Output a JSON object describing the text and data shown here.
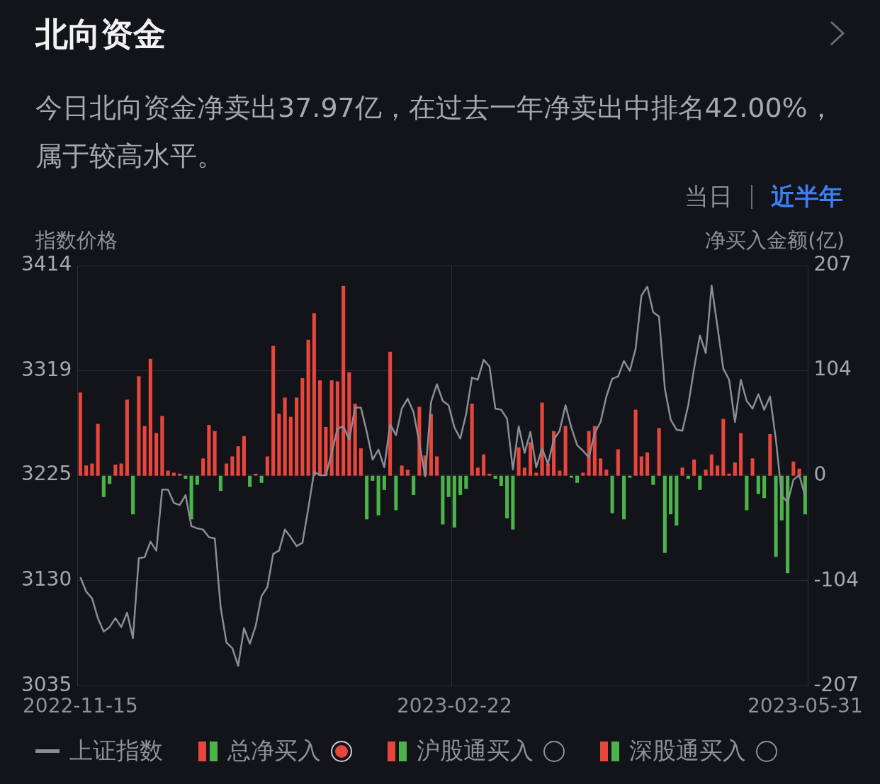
{
  "chart_data": {
    "type": "bar",
    "title": "北向资金",
    "subtitle": "今日北向资金净卖出37.97亿，在过去一年净卖出中排名42.00%，属于较高水平。",
    "ylabel": "指数价格",
    "y2label": "净买入金额(亿)",
    "annotations": [
      "当日",
      "近半年",
      "沪股通买入",
      "深股通买入"
    ],
    "categories": [
      "2022-11-15",
      null,
      null,
      null,
      null,
      null,
      null,
      null,
      null,
      null,
      null,
      null,
      null,
      null,
      null,
      null,
      null,
      null,
      null,
      null,
      null,
      null,
      null,
      null,
      null,
      null,
      null,
      null,
      null,
      null,
      null,
      null,
      null,
      null,
      null,
      null,
      null,
      null,
      null,
      null,
      null,
      null,
      null,
      null,
      null,
      null,
      null,
      null,
      null,
      null,
      null,
      null,
      null,
      null,
      null,
      null,
      null,
      null,
      null,
      null,
      null,
      null,
      null,
      null,
      "2023-02-22",
      null,
      null,
      null,
      null,
      null,
      null,
      null,
      null,
      null,
      null,
      null,
      null,
      null,
      null,
      null,
      null,
      null,
      null,
      null,
      null,
      null,
      null,
      null,
      null,
      null,
      null,
      null,
      null,
      null,
      null,
      null,
      null,
      null,
      null,
      null,
      null,
      null,
      null,
      null,
      null,
      null,
      null,
      null,
      null,
      null,
      null,
      null,
      null,
      null,
      null,
      null,
      null,
      null,
      null,
      null,
      null,
      null,
      null,
      null,
      "2023-05-31"
    ],
    "series": [
      {
        "name": "上证指数",
        "type": "line",
        "axis": "y",
        "color": "#8a8d93",
        "values": [
          3133,
          3120,
          3114,
          3096,
          3084,
          3088,
          3096,
          3088,
          3101,
          3078,
          3150,
          3151,
          3165,
          3157,
          3212,
          3212,
          3200,
          3198,
          3207,
          3179,
          3177,
          3176,
          3169,
          3168,
          3106,
          3074,
          3069,
          3053,
          3087,
          3073,
          3089,
          3116,
          3124,
          3154,
          3157,
          3176,
          3169,
          3161,
          3164,
          3195,
          3228,
          3225,
          3225,
          3245,
          3267,
          3269,
          3257,
          3286,
          3286,
          3264,
          3239,
          3248,
          3232,
          3271,
          3261,
          3285,
          3294,
          3282,
          3254,
          3224,
          3291,
          3307,
          3292,
          3288,
          3268,
          3258,
          3280,
          3313,
          3311,
          3329,
          3323,
          3285,
          3284,
          3276,
          3230,
          3269,
          3245,
          3264,
          3232,
          3249,
          3235,
          3257,
          3265,
          3288,
          3268,
          3252,
          3247,
          3241,
          3263,
          3273,
          3296,
          3312,
          3314,
          3328,
          3319,
          3339,
          3387,
          3395,
          3372,
          3368,
          3303,
          3275,
          3266,
          3265,
          3288,
          3321,
          3351,
          3335,
          3396,
          3359,
          3321,
          3311,
          3273,
          3311,
          3292,
          3285,
          3298,
          3284,
          3296,
          3257,
          3207,
          3200,
          3221,
          3225,
          3206
        ]
      },
      {
        "name": "总净买入",
        "type": "bar",
        "axis": "y2",
        "color": "#e8453c",
        "values": [
          82,
          10,
          12,
          51,
          -21,
          -8,
          11,
          12,
          75,
          -38,
          98,
          49,
          115,
          42,
          59,
          5,
          3,
          2,
          -3,
          -43,
          -9,
          17,
          50,
          44,
          -15,
          12,
          19,
          29,
          39,
          -11,
          2,
          -7,
          19,
          128,
          61,
          77,
          58,
          77,
          96,
          134,
          160,
          94,
          48,
          94,
          93,
          187,
          102,
          71,
          27,
          -43,
          -5,
          -39,
          -14,
          122,
          -34,
          10,
          6,
          -19,
          68,
          20,
          61,
          19,
          -48,
          -21,
          -51,
          -19,
          -13,
          71,
          8,
          21,
          2,
          -3,
          -10,
          -42,
          -53,
          28,
          8,
          33,
          3,
          72,
          12,
          44,
          5,
          49,
          -2,
          -7,
          3,
          44,
          49,
          17,
          6,
          -37,
          26,
          -43,
          -2,
          65,
          19,
          23,
          -9,
          47,
          -76,
          -38,
          -49,
          8,
          -3,
          16,
          -14,
          6,
          21,
          10,
          56,
          2,
          13,
          42,
          -34,
          17,
          -18,
          -22,
          41,
          -80,
          -44,
          -96,
          14,
          7,
          -38
        ],
        "colors": [
          "#e8453c",
          "#e8453c",
          "#e8453c",
          "#e8453c",
          "#4cb24a",
          "#4cb24a",
          "#e8453c",
          "#e8453c",
          "#e8453c",
          "#4cb24a",
          "#e8453c",
          "#e8453c",
          "#e8453c",
          "#e8453c",
          "#e8453c",
          "#e8453c",
          "#e8453c",
          "#e8453c",
          "#4cb24a",
          "#4cb24a",
          "#4cb24a",
          "#e8453c",
          "#e8453c",
          "#e8453c",
          "#4cb24a",
          "#e8453c",
          "#e8453c",
          "#e8453c",
          "#e8453c",
          "#4cb24a",
          "#e8453c",
          "#4cb24a",
          "#e8453c",
          "#e8453c",
          "#e8453c",
          "#e8453c",
          "#e8453c",
          "#e8453c",
          "#e8453c",
          "#e8453c",
          "#e8453c",
          "#e8453c",
          "#e8453c",
          "#e8453c",
          "#e8453c",
          "#e8453c",
          "#e8453c",
          "#e8453c",
          "#e8453c",
          "#4cb24a",
          "#4cb24a",
          "#4cb24a",
          "#4cb24a",
          "#e8453c",
          "#4cb24a",
          "#e8453c",
          "#e8453c",
          "#4cb24a",
          "#e8453c",
          "#e8453c",
          "#e8453c",
          "#e8453c",
          "#4cb24a",
          "#4cb24a",
          "#4cb24a",
          "#4cb24a",
          "#4cb24a",
          "#e8453c",
          "#e8453c",
          "#e8453c",
          "#e8453c",
          "#4cb24a",
          "#4cb24a",
          "#4cb24a",
          "#4cb24a",
          "#e8453c",
          "#e8453c",
          "#e8453c",
          "#e8453c",
          "#e8453c",
          "#e8453c",
          "#e8453c",
          "#e8453c",
          "#e8453c",
          "#4cb24a",
          "#4cb24a",
          "#e8453c",
          "#e8453c",
          "#e8453c",
          "#e8453c",
          "#e8453c",
          "#4cb24a",
          "#e8453c",
          "#4cb24a",
          "#4cb24a",
          "#e8453c",
          "#e8453c",
          "#e8453c",
          "#4cb24a",
          "#e8453c",
          "#4cb24a",
          "#4cb24a",
          "#4cb24a",
          "#e8453c",
          "#4cb24a",
          "#e8453c",
          "#4cb24a",
          "#e8453c",
          "#e8453c",
          "#e8453c",
          "#e8453c",
          "#e8453c",
          "#e8453c",
          "#e8453c",
          "#4cb24a",
          "#e8453c",
          "#4cb24a",
          "#4cb24a",
          "#e8453c",
          "#4cb24a",
          "#4cb24a",
          "#4cb24a",
          "#e8453c",
          "#e8453c",
          "#4cb24a"
        ]
      }
    ],
    "ylim": [
      3035,
      3414
    ],
    "yticks": [
      3035,
      3130,
      3225,
      3319,
      3414
    ],
    "y2lim": [
      -207,
      207
    ],
    "y2ticks": [
      -207,
      -104,
      0,
      104,
      207
    ],
    "grid": true,
    "legend": "bottom"
  }
}
